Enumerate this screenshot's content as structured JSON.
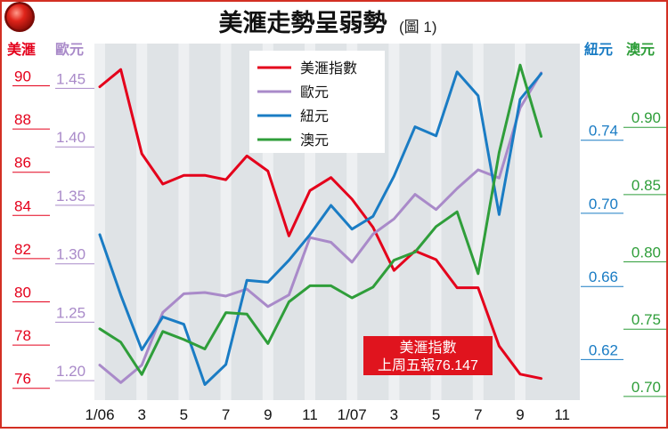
{
  "chart_data": {
    "type": "line",
    "title": "美滙走勢呈弱勢",
    "subtitle": "(圖 1)",
    "x_tick_labels": [
      "1/06",
      "3",
      "5",
      "7",
      "9",
      "11",
      "1/07",
      "3",
      "5",
      "7",
      "9",
      "11"
    ],
    "x": [
      "2006-01",
      "2006-02",
      "2006-03",
      "2006-04",
      "2006-05",
      "2006-06",
      "2006-07",
      "2006-08",
      "2006-09",
      "2006-10",
      "2006-11",
      "2006-12",
      "2007-01",
      "2007-02",
      "2007-03",
      "2007-04",
      "2007-05",
      "2007-06",
      "2007-07",
      "2007-08",
      "2007-09",
      "2007-10"
    ],
    "axes": {
      "usd": {
        "label": "美滙",
        "color": "#e4001b",
        "side": "left",
        "ticks": [
          "90",
          "88",
          "86",
          "84",
          "82",
          "80",
          "78",
          "76"
        ],
        "range": [
          75,
          91.5
        ]
      },
      "eur": {
        "label": "歐元",
        "color": "#a98ac9",
        "side": "left",
        "ticks": [
          "1.45",
          "1.40",
          "1.35",
          "1.30",
          "1.25",
          "1.20"
        ],
        "range": [
          1.175,
          1.48
        ]
      },
      "nzd": {
        "label": "紐元",
        "color": "#1a7cc4",
        "side": "right",
        "ticks": [
          "0.74",
          "0.70",
          "0.66",
          "0.62"
        ],
        "range": [
          0.5925,
          0.7875
        ]
      },
      "aud": {
        "label": "澳元",
        "color": "#2f9e3a",
        "side": "right",
        "ticks": [
          "0.90",
          "0.85",
          "0.80",
          "0.75",
          "0.70"
        ],
        "range": [
          0.69,
          0.955
        ]
      }
    },
    "series": [
      {
        "name": "美滙指數",
        "axis": "usd",
        "color": "#e4001b",
        "values": [
          89.5,
          90.3,
          86.4,
          85.0,
          85.4,
          85.4,
          85.2,
          86.3,
          85.6,
          82.6,
          84.7,
          85.3,
          84.3,
          83.0,
          81.0,
          81.9,
          81.5,
          80.2,
          80.2,
          77.5,
          76.2,
          76.0
        ]
      },
      {
        "name": "歐元",
        "axis": "eur",
        "color": "#a98ac9",
        "values": [
          1.205,
          1.19,
          1.205,
          1.25,
          1.266,
          1.267,
          1.264,
          1.27,
          1.255,
          1.265,
          1.314,
          1.31,
          1.293,
          1.317,
          1.33,
          1.351,
          1.338,
          1.356,
          1.372,
          1.365,
          1.425,
          1.455
        ]
      },
      {
        "name": "紐元",
        "axis": "nzd",
        "color": "#1a7cc4",
        "values": [
          0.683,
          0.65,
          0.62,
          0.638,
          0.634,
          0.601,
          0.612,
          0.658,
          0.657,
          0.669,
          0.683,
          0.699,
          0.686,
          0.693,
          0.715,
          0.742,
          0.737,
          0.772,
          0.759,
          0.694,
          0.757,
          0.771
        ]
      },
      {
        "name": "澳元",
        "axis": "aud",
        "color": "#2f9e3a",
        "values": [
          0.743,
          0.733,
          0.709,
          0.741,
          0.735,
          0.728,
          0.755,
          0.754,
          0.732,
          0.763,
          0.775,
          0.775,
          0.766,
          0.774,
          0.794,
          0.8,
          0.819,
          0.83,
          0.784,
          0.874,
          0.939,
          0.886
        ]
      }
    ],
    "legend": {
      "placement": "top-center",
      "items": [
        "美滙指數",
        "歐元",
        "紐元",
        "澳元"
      ]
    },
    "annotation": {
      "line1": "美滙指數",
      "line2": "上周五報76.147"
    }
  }
}
